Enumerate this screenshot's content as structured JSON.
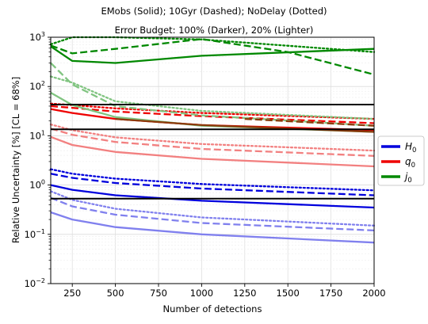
{
  "chart_data": {
    "type": "line",
    "title_line1": "EMobs (Solid); 10Gyr (Dashed); NoDelay (Dotted)",
    "title_line2": "Error Budget: 100% (Darker), 20% (Lighter)",
    "xlabel": "Number of detections",
    "ylabel": "Relative Uncertainty [%] [CL = 68%]",
    "xlim": [
      125,
      2000
    ],
    "ylim": [
      0.01,
      1000
    ],
    "yscale": "log",
    "grid": true,
    "legend_position": "right",
    "x_ticks": [
      250,
      500,
      750,
      1000,
      1250,
      1500,
      1750,
      2000
    ],
    "x_tick_labels": [
      "250",
      "500",
      "750",
      "1000",
      "1250",
      "1500",
      "1750",
      "2000"
    ],
    "y_ticks": [
      0.01,
      0.1,
      1,
      10,
      100,
      1000
    ],
    "y_tick_labels": [
      {
        "base": "10",
        "exp": "−2"
      },
      {
        "base": "10",
        "exp": "−1"
      },
      {
        "base": "10",
        "exp": "0"
      },
      {
        "base": "10",
        "exp": "1"
      },
      {
        "base": "10",
        "exp": "2"
      },
      {
        "base": "10",
        "exp": "3"
      }
    ],
    "legend": [
      {
        "base": "H",
        "sub": "0",
        "color": "#0000dd"
      },
      {
        "base": "q",
        "sub": "0",
        "color": "#ee0000"
      },
      {
        "base": "j",
        "sub": "0",
        "color": "#008800"
      }
    ],
    "hlines": [
      43,
      13.5,
      0.53
    ],
    "colors": {
      "H_dark": "#0000dd",
      "H_light": "#8080ee",
      "q_dark": "#ee0000",
      "q_light": "#f28080",
      "j_dark": "#008800",
      "j_light": "#80c480",
      "qj_overlap": "#8b3a0a",
      "hline": "#000000"
    },
    "series": [
      {
        "color": "H_dark",
        "style": "solid",
        "x": [
          125,
          250,
          500,
          1000,
          2000
        ],
        "y": [
          1.0,
          0.8,
          0.62,
          0.48,
          0.35
        ]
      },
      {
        "color": "H_dark",
        "style": "dashed",
        "x": [
          125,
          250,
          500,
          1000,
          2000
        ],
        "y": [
          1.7,
          1.4,
          1.1,
          0.85,
          0.62
        ]
      },
      {
        "color": "H_dark",
        "style": "dotted",
        "x": [
          125,
          250,
          500,
          1000,
          2000
        ],
        "y": [
          2.1,
          1.7,
          1.35,
          1.05,
          0.78
        ]
      },
      {
        "color": "H_light",
        "style": "solid",
        "x": [
          125,
          250,
          500,
          1000,
          2000
        ],
        "y": [
          0.28,
          0.2,
          0.14,
          0.1,
          0.068
        ]
      },
      {
        "color": "H_light",
        "style": "dashed",
        "x": [
          125,
          250,
          500,
          1000,
          2000
        ],
        "y": [
          0.55,
          0.37,
          0.25,
          0.17,
          0.12
        ]
      },
      {
        "color": "H_light",
        "style": "dotted",
        "x": [
          125,
          250,
          500,
          1000,
          2000
        ],
        "y": [
          0.75,
          0.5,
          0.33,
          0.22,
          0.15
        ]
      },
      {
        "color": "q_dark",
        "style": "solid",
        "x": [
          125,
          250,
          500,
          1000,
          2000
        ],
        "y": [
          35,
          29,
          22,
          16.5,
          13
        ]
      },
      {
        "color": "q_dark",
        "style": "dashed",
        "x": [
          125,
          250,
          500,
          1000,
          2000
        ],
        "y": [
          40,
          37,
          31,
          25,
          18
        ]
      },
      {
        "color": "q_dark",
        "style": "dotted",
        "x": [
          125,
          250,
          500,
          1000,
          2000
        ],
        "y": [
          45,
          42,
          36,
          29,
          22
        ]
      },
      {
        "color": "q_light",
        "style": "solid",
        "x": [
          125,
          250,
          500,
          1000,
          2000
        ],
        "y": [
          9.5,
          6.5,
          4.7,
          3.4,
          2.4
        ]
      },
      {
        "color": "q_light",
        "style": "dashed",
        "x": [
          125,
          250,
          500,
          1000,
          2000
        ],
        "y": [
          14,
          10.5,
          7.5,
          5.4,
          3.9
        ]
      },
      {
        "color": "q_light",
        "style": "dotted",
        "x": [
          125,
          250,
          500,
          1000,
          2000
        ],
        "y": [
          17,
          13,
          9.3,
          6.8,
          5.0
        ]
      },
      {
        "color": "j_dark",
        "style": "solid",
        "x": [
          125,
          250,
          500,
          1000,
          2000
        ],
        "y": [
          650,
          330,
          300,
          420,
          580
        ]
      },
      {
        "color": "j_dark",
        "style": "dashed",
        "x": [
          125,
          250,
          500,
          1000,
          1500,
          2000
        ],
        "y": [
          680,
          470,
          580,
          920,
          500,
          175
        ]
      },
      {
        "color": "j_dark",
        "style": "dotted",
        "x": [
          125,
          250,
          500,
          1000,
          2000
        ],
        "y": [
          720,
          1400,
          1100,
          900,
          500
        ]
      },
      {
        "color": "j_light",
        "style": "solid",
        "x": [
          125,
          250,
          500,
          1000,
          2000
        ],
        "y": [
          75,
          42,
          24,
          16,
          12
        ]
      },
      {
        "color": "j_light",
        "style": "dashed",
        "x": [
          125,
          250,
          500,
          1000,
          2000
        ],
        "y": [
          300,
          110,
          40,
          26,
          16
        ]
      },
      {
        "color": "j_light",
        "style": "dotted",
        "x": [
          125,
          250,
          500,
          1000,
          2000
        ],
        "y": [
          160,
          120,
          50,
          32,
          22
        ]
      },
      {
        "color": "qj_overlap",
        "style": "solid",
        "x": [
          500,
          1000,
          2000
        ],
        "y": [
          22,
          16.5,
          12
        ]
      },
      {
        "color": "qj_overlap",
        "style": "dashed",
        "x": [
          1250,
          2000
        ],
        "y": [
          22,
          16
        ]
      }
    ]
  }
}
